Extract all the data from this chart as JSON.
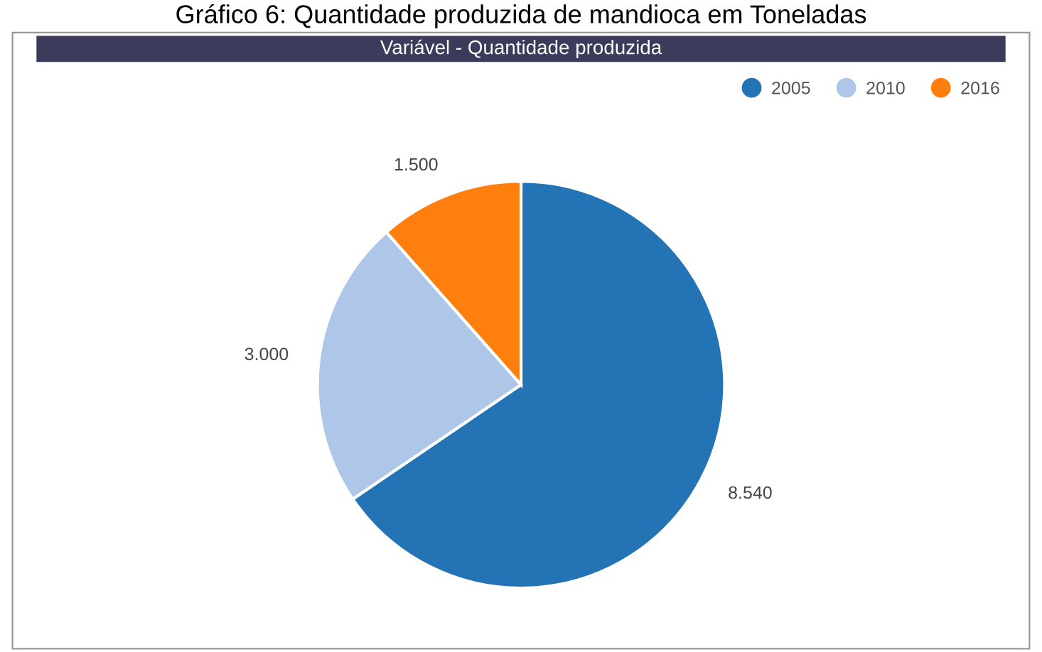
{
  "chart_data": {
    "type": "pie",
    "title": "Gráfico 6: Quantidade produzida de mandioca em Toneladas",
    "subtitle": "Variável - Quantidade produzida",
    "categories": [
      "2005",
      "2010",
      "2016"
    ],
    "values": [
      8540,
      3000,
      1500
    ],
    "value_labels": [
      "8.540",
      "3.000",
      "1.500"
    ],
    "colors": [
      "#2474b5",
      "#aec7e8",
      "#ff7f0e"
    ],
    "legend": "top right"
  }
}
